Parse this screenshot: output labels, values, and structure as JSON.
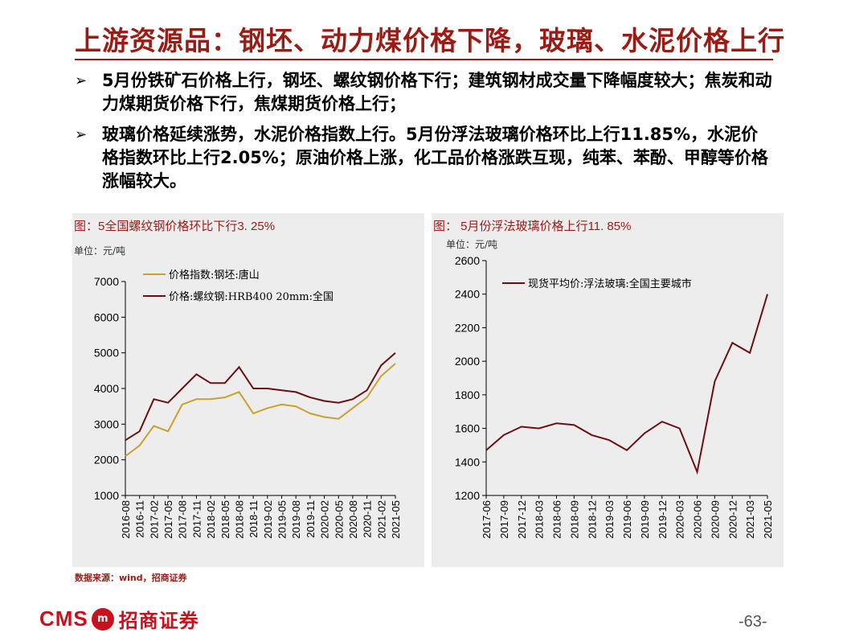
{
  "title": "上游资源品：钢坯、动力煤价格下降，玻璃、水泥价格上行",
  "bullets": [
    {
      "mark": "➢",
      "text": "5月份铁矿石价格上行，钢坯、螺纹钢价格下行；建筑钢材成交量下降幅度较大；焦炭和动力煤期货价格下行，焦煤期货价格上行；"
    },
    {
      "mark": "➢",
      "text": "玻璃价格延续涨势，水泥价格指数上行。5月份浮法玻璃价格环比上行11.85%，水泥价格指数环比上行2.05%；原油价格上涨，化工品价格涨跌互现，纯苯、苯酚、甲醇等价格涨幅较大。"
    }
  ],
  "left_panel": {
    "title": "图：5全国螺纹钢价格环比下行3. 25%",
    "unit": "单位：元/吨"
  },
  "right_panel": {
    "title": "图： 5月份浮法玻璃价格上行11. 85%",
    "unit": "单位：元/吨"
  },
  "chart_data": [
    {
      "type": "line",
      "title": "图：5全国螺纹钢价格环比下行3. 25%",
      "ylabel": "单位：元/吨",
      "ylim": [
        1000,
        7000
      ],
      "yticks": [
        1000,
        2000,
        3000,
        4000,
        5000,
        6000,
        7000
      ],
      "categories": [
        "2016-08",
        "2016-11",
        "2017-02",
        "2017-05",
        "2017-08",
        "2017-11",
        "2018-02",
        "2018-05",
        "2018-08",
        "2018-11",
        "2019-02",
        "2019-05",
        "2019-08",
        "2019-11",
        "2020-02",
        "2020-05",
        "2020-08",
        "2020-11",
        "2021-02",
        "2021-05"
      ],
      "legend_position": "top-left",
      "grid": false,
      "series": [
        {
          "name": "价格指数:钢坯:唐山",
          "color": "#c8a22c",
          "values": [
            2100,
            2400,
            2950,
            2800,
            3550,
            3700,
            3700,
            3750,
            3900,
            3300,
            3450,
            3550,
            3500,
            3300,
            3200,
            3150,
            3450,
            3750,
            4350,
            4700
          ]
        },
        {
          "name": "价格:螺纹钢:HRB400 20mm:全国",
          "color": "#6b0f12",
          "values": [
            2550,
            2800,
            3700,
            3600,
            4000,
            4400,
            4150,
            4150,
            4600,
            4000,
            4000,
            3950,
            3900,
            3750,
            3650,
            3600,
            3700,
            3950,
            4650,
            5000
          ]
        }
      ]
    },
    {
      "type": "line",
      "title": "图： 5月份浮法玻璃价格上行11. 85%",
      "ylabel": "单位：元/吨",
      "ylim": [
        1200,
        2600
      ],
      "yticks": [
        1200,
        1400,
        1600,
        1800,
        2000,
        2200,
        2400,
        2600
      ],
      "categories": [
        "2017-06",
        "2017-09",
        "2017-12",
        "2018-03",
        "2018-06",
        "2018-09",
        "2018-12",
        "2019-03",
        "2019-06",
        "2019-09",
        "2019-12",
        "2020-03",
        "2020-06",
        "2020-09",
        "2020-12",
        "2021-03",
        "2021-05"
      ],
      "legend_position": "top-right",
      "grid": false,
      "series": [
        {
          "name": "现货平均价:浮法玻璃:全国主要城市",
          "color": "#6b0f12",
          "values": [
            1470,
            1560,
            1610,
            1600,
            1630,
            1620,
            1560,
            1530,
            1470,
            1570,
            1640,
            1600,
            1340,
            1880,
            2110,
            2050,
            2400
          ]
        }
      ]
    }
  ],
  "source": "数据来源：wind，招商证券",
  "logo": {
    "cms": "CMS",
    "badge": "m",
    "cn": "招商证券"
  },
  "page_number": "-63-"
}
